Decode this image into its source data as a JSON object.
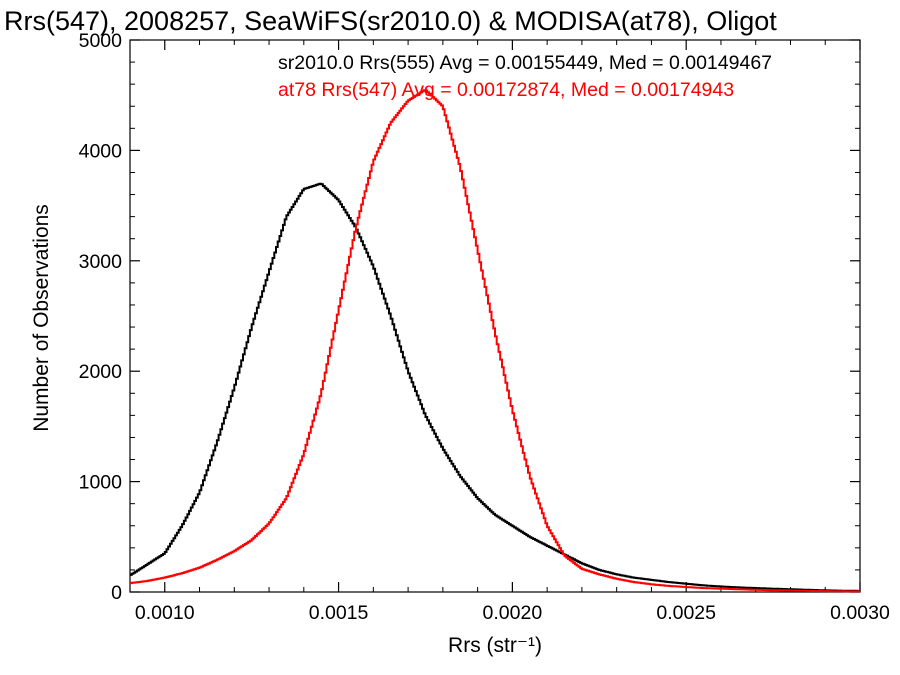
{
  "chart_data": {
    "type": "line",
    "title": "Rrs(547), 2008257, SeaWiFS(sr2010.0) & MODISA(at78), Oligot",
    "xlabel": "Rrs (str⁻¹)",
    "ylabel": "Number of Observations",
    "xlim": [
      0.0009,
      0.003
    ],
    "ylim": [
      0,
      5000
    ],
    "x_ticks": [
      "0.0010",
      "0.0015",
      "0.0020",
      "0.0025",
      "0.0030"
    ],
    "y_ticks": [
      "0",
      "1000",
      "2000",
      "3000",
      "4000",
      "5000"
    ],
    "annotations": [
      {
        "text": "sr2010.0 Rrs(555) Avg = 0.00155449, Med = 0.00149467",
        "color": "#000000"
      },
      {
        "text": "at78 Rrs(547) Avg = 0.00172874, Med = 0.00174943",
        "color": "#ff0000"
      }
    ],
    "series": [
      {
        "color": "#000000",
        "x": [
          0.0009,
          0.00095,
          0.001,
          0.00105,
          0.0011,
          0.00115,
          0.0012,
          0.00125,
          0.0013,
          0.00135,
          0.0014,
          0.00145,
          0.0015,
          0.00155,
          0.0016,
          0.00165,
          0.0017,
          0.00175,
          0.0018,
          0.00185,
          0.0019,
          0.00195,
          0.002,
          0.00205,
          0.0021,
          0.00215,
          0.0022,
          0.00225,
          0.0023,
          0.00235,
          0.0024,
          0.00245,
          0.0025,
          0.00255,
          0.0026,
          0.00265,
          0.0027,
          0.00275,
          0.0028,
          0.00285,
          0.0029,
          0.00295,
          0.003
        ],
        "values": [
          150,
          250,
          350,
          600,
          900,
          1350,
          1850,
          2400,
          2900,
          3400,
          3650,
          3700,
          3550,
          3300,
          2950,
          2500,
          2000,
          1600,
          1300,
          1050,
          850,
          700,
          600,
          500,
          420,
          340,
          260,
          200,
          160,
          130,
          110,
          90,
          75,
          60,
          50,
          42,
          36,
          30,
          25,
          20,
          15,
          12,
          10
        ]
      },
      {
        "color": "#ff0000",
        "x": [
          0.0009,
          0.00095,
          0.001,
          0.00105,
          0.0011,
          0.00115,
          0.0012,
          0.00125,
          0.0013,
          0.00135,
          0.0014,
          0.00145,
          0.0015,
          0.00155,
          0.0016,
          0.00165,
          0.0017,
          0.00175,
          0.0018,
          0.00185,
          0.0019,
          0.00195,
          0.002,
          0.00205,
          0.0021,
          0.00215,
          0.0022,
          0.00225,
          0.0023,
          0.00235,
          0.0024,
          0.00245,
          0.0025,
          0.00255,
          0.0026,
          0.00265,
          0.0027,
          0.00275,
          0.0028,
          0.00285,
          0.0029,
          0.00295,
          0.003
        ],
        "values": [
          80,
          100,
          130,
          170,
          220,
          290,
          370,
          470,
          620,
          850,
          1250,
          1800,
          2550,
          3300,
          3900,
          4250,
          4450,
          4550,
          4400,
          3850,
          3100,
          2350,
          1650,
          1050,
          600,
          330,
          210,
          160,
          120,
          90,
          70,
          55,
          45,
          36,
          30,
          25,
          20,
          16,
          13,
          10,
          8,
          6,
          5
        ]
      }
    ]
  }
}
